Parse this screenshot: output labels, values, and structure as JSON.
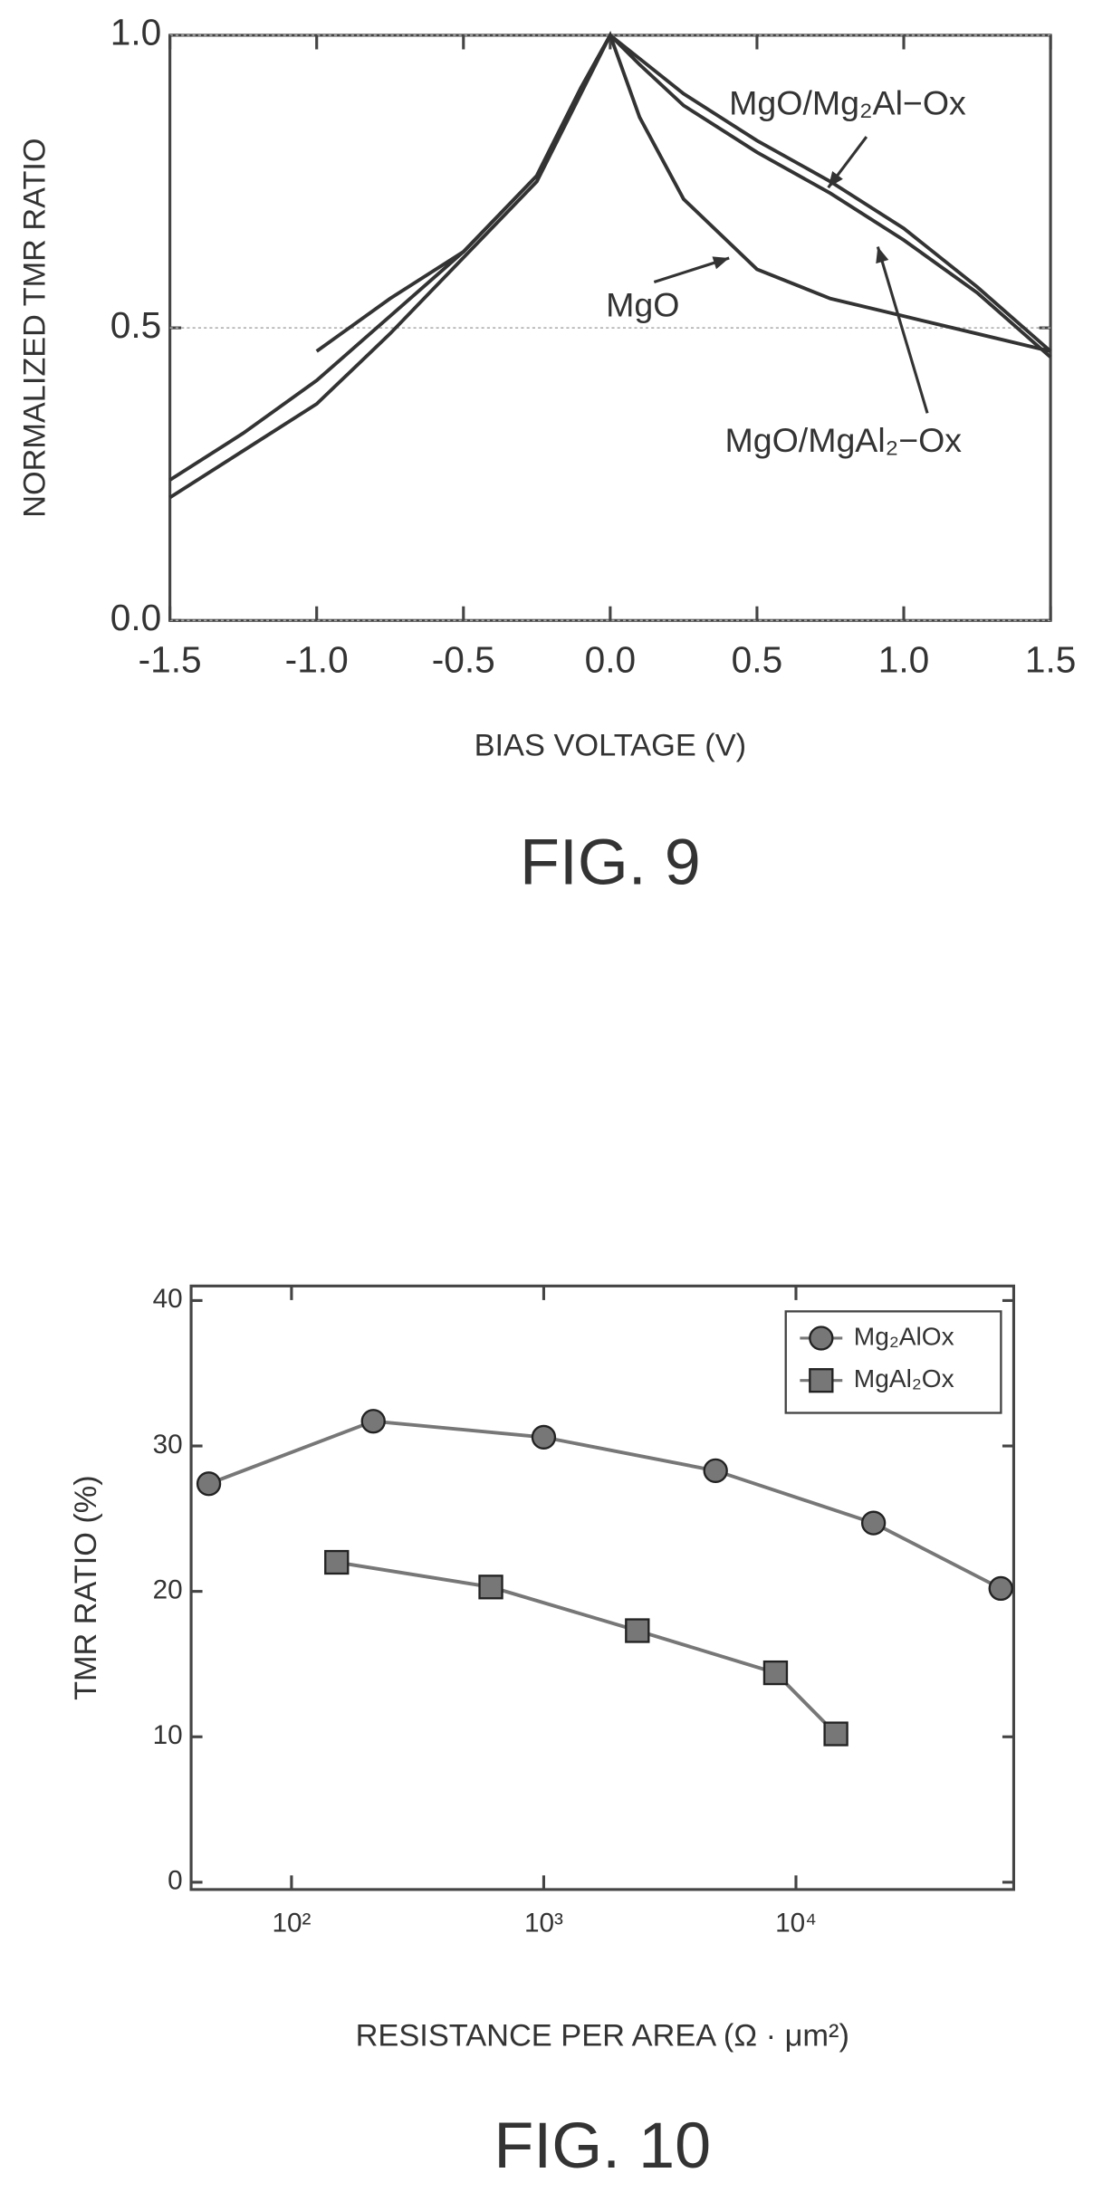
{
  "chart_data": [
    {
      "type": "line",
      "xlabel": "BIAS VOLTAGE (V)",
      "ylabel": "NORMALIZED TMR RATIO",
      "caption": "FIG. 9",
      "x": [
        -1.5,
        -1.25,
        -1.0,
        -0.75,
        -0.5,
        -0.25,
        -0.1,
        0,
        0.1,
        0.25,
        0.5,
        0.75,
        1.0,
        1.25,
        1.5
      ],
      "series": [
        {
          "name": "MgO",
          "color": "#333333",
          "values": [
            0.21,
            0.29,
            0.37,
            0.49,
            0.62,
            0.75,
            0.9,
            1.0,
            0.86,
            0.72,
            0.6,
            0.55,
            0.52,
            0.49,
            0.46
          ]
        },
        {
          "name": "MgO/Mg₂Al−Ox",
          "color": "#333333",
          "values": [
            0.24,
            0.32,
            0.41,
            0.52,
            0.63,
            0.76,
            0.91,
            1.0,
            0.96,
            0.9,
            0.82,
            0.75,
            0.67,
            0.57,
            0.46
          ]
        },
        {
          "name": "MgO/MgAl₂−Ox",
          "color": "#333333",
          "values": [
            null,
            null,
            0.46,
            0.55,
            0.63,
            0.76,
            0.91,
            1.0,
            0.95,
            0.88,
            0.8,
            0.73,
            0.65,
            0.56,
            0.45
          ]
        }
      ],
      "annotations": [
        "MgO/Mg₂Al−Ox",
        "MgO",
        "MgO/MgAl₂−Ox"
      ],
      "xlim": [
        -1.5,
        1.5
      ],
      "xticks": [
        -1.5,
        {
          "value": -1.0,
          "label": "-1.0"
        },
        -0.5,
        {
          "value": 0,
          "label": "0.0"
        },
        0.5,
        {
          "value": 1.0,
          "label": "1.0"
        },
        1.5
      ],
      "ylim": [
        0,
        1
      ],
      "yticks": [
        {
          "value": 0,
          "label": "0.0"
        },
        0.5,
        {
          "value": 1,
          "label": "1.0"
        }
      ],
      "grid": true
    },
    {
      "type": "scatter",
      "xlabel": "RESISTANCE PER AREA (Ω · μm²)",
      "ylabel": "TMR RATIO (%)",
      "caption": "FIG. 10",
      "xscale": "log",
      "series": [
        {
          "name": "Mg₂AlOx",
          "color": "#777777",
          "marker": "circle",
          "x": [
            47,
            211,
            1000,
            4800,
            20300,
            64900
          ],
          "values": [
            27.4,
            31.7,
            30.6,
            28.3,
            24.7,
            20.2
          ]
        },
        {
          "name": "MgAl₂Ox",
          "color": "#777777",
          "marker": "square",
          "x": [
            151,
            617,
            2350,
            8300,
            14400
          ],
          "values": [
            22.0,
            20.3,
            17.3,
            14.4,
            10.2
          ]
        }
      ],
      "xlim": [
        40,
        73000
      ],
      "xticks": [
        {
          "value": 100,
          "label": "10²"
        },
        {
          "value": 1000,
          "label": "10³"
        },
        {
          "value": 10000,
          "label": "10⁴"
        }
      ],
      "ylim": [
        -0.5,
        41
      ],
      "yticks": [
        0,
        10,
        20,
        30,
        40
      ],
      "grid": false,
      "legend": "upper right"
    }
  ]
}
